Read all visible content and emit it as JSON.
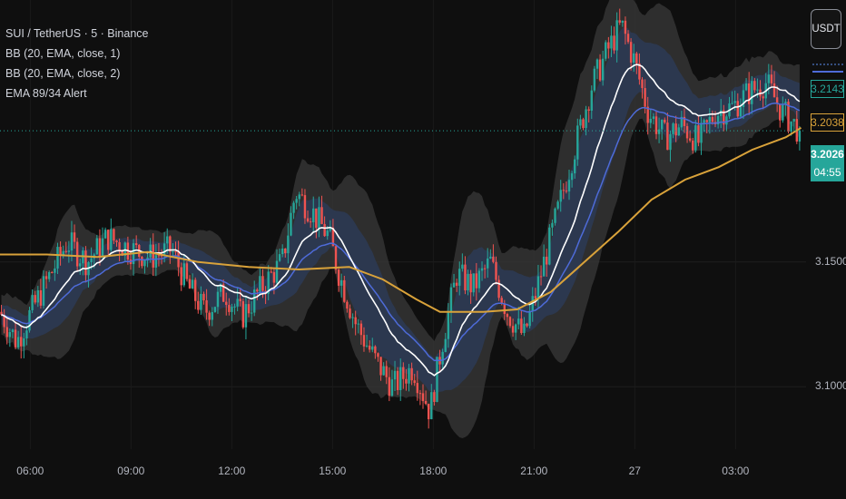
{
  "legend": {
    "symbol": "SUI / TetherUS · 5 · Binance",
    "bb1": "BB (20, EMA, close, 1)",
    "bb2": "BB (20, EMA, close, 2)",
    "ema": "EMA 89/34 Alert"
  },
  "currency_button": "USDT",
  "price_labels": {
    "bb_basis": "3.2143",
    "ema89": "3.2038",
    "last_price": "3.2026",
    "countdown": "04:55"
  },
  "colors": {
    "background": "#0f0f0f",
    "up_candle": "#26a69a",
    "down_candle": "#ef5350",
    "bb_basis": "#ffffff",
    "bb_inner_band": "#2b3a55",
    "bb_outer_band": "#3a3a3a",
    "ema34": "#4e6bd8",
    "ema89": "#d9a23a",
    "last_price_line": "#26a69a"
  },
  "chart_data": {
    "type": "line",
    "y_ticks": [
      "3.1500",
      "3.1000"
    ],
    "ylim": [
      3.075,
      3.255
    ],
    "x_ticks": [
      "06:00",
      "09:00",
      "12:00",
      "15:00",
      "18:00",
      "21:00",
      "27",
      "03:00"
    ],
    "x_tick_hours": [
      6,
      9,
      12,
      15,
      18,
      21,
      24,
      27
    ],
    "xlim_hours": [
      5.1,
      29.1
    ],
    "last_price": 3.2026,
    "price_path": [
      [
        5.1,
        3.13
      ],
      [
        5.6,
        3.118
      ],
      [
        6.1,
        3.132
      ],
      [
        6.6,
        3.145
      ],
      [
        7.1,
        3.158
      ],
      [
        7.7,
        3.15
      ],
      [
        8.3,
        3.16
      ],
      [
        9.0,
        3.155
      ],
      [
        9.6,
        3.152
      ],
      [
        10.2,
        3.155
      ],
      [
        10.7,
        3.14
      ],
      [
        11.2,
        3.13
      ],
      [
        11.8,
        3.138
      ],
      [
        12.3,
        3.128
      ],
      [
        12.9,
        3.14
      ],
      [
        13.5,
        3.15
      ],
      [
        13.9,
        3.178
      ],
      [
        14.4,
        3.17
      ],
      [
        14.9,
        3.16
      ],
      [
        15.2,
        3.145
      ],
      [
        15.7,
        3.125
      ],
      [
        16.3,
        3.11
      ],
      [
        16.8,
        3.1
      ],
      [
        17.4,
        3.108
      ],
      [
        17.9,
        3.09
      ],
      [
        18.3,
        3.12
      ],
      [
        18.7,
        3.145
      ],
      [
        19.2,
        3.14
      ],
      [
        19.7,
        3.15
      ],
      [
        20.2,
        3.13
      ],
      [
        20.7,
        3.12
      ],
      [
        21.2,
        3.145
      ],
      [
        21.7,
        3.17
      ],
      [
        22.2,
        3.195
      ],
      [
        22.7,
        3.22
      ],
      [
        23.2,
        3.235
      ],
      [
        23.6,
        3.245
      ],
      [
        24.0,
        3.23
      ],
      [
        24.4,
        3.21
      ],
      [
        24.9,
        3.2
      ],
      [
        25.4,
        3.205
      ],
      [
        25.9,
        3.198
      ],
      [
        26.4,
        3.21
      ],
      [
        26.9,
        3.212
      ],
      [
        27.4,
        3.218
      ],
      [
        27.9,
        3.222
      ],
      [
        28.4,
        3.21
      ],
      [
        28.9,
        3.2026
      ]
    ],
    "ema89": [
      [
        5.1,
        3.153
      ],
      [
        6.5,
        3.153
      ],
      [
        8.0,
        3.152
      ],
      [
        9.5,
        3.154
      ],
      [
        11.0,
        3.15
      ],
      [
        12.5,
        3.148
      ],
      [
        14.0,
        3.147
      ],
      [
        15.5,
        3.148
      ],
      [
        16.5,
        3.143
      ],
      [
        17.5,
        3.135
      ],
      [
        18.2,
        3.13
      ],
      [
        19.5,
        3.13
      ],
      [
        20.5,
        3.131
      ],
      [
        21.5,
        3.138
      ],
      [
        22.5,
        3.15
      ],
      [
        23.5,
        3.162
      ],
      [
        24.5,
        3.175
      ],
      [
        25.5,
        3.183
      ],
      [
        26.5,
        3.188
      ],
      [
        27.5,
        3.195
      ],
      [
        28.5,
        3.2
      ],
      [
        28.95,
        3.2038
      ]
    ],
    "bb_basis_last": 3.2143
  }
}
